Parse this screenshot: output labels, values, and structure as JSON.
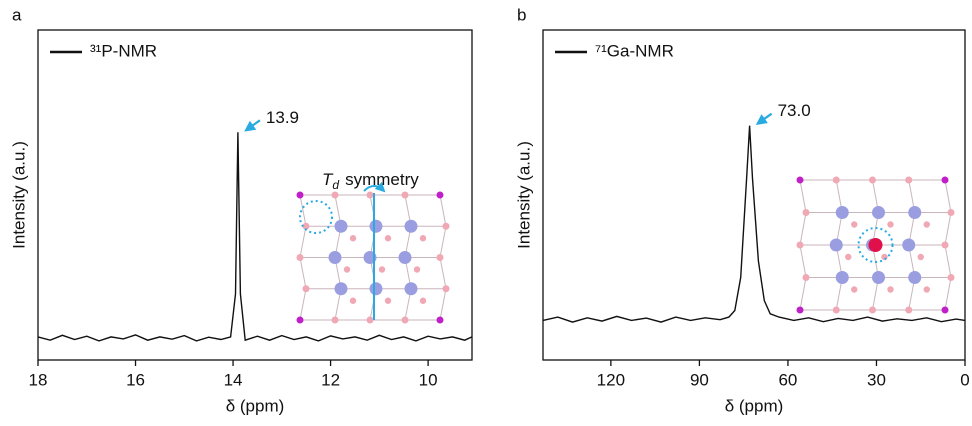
{
  "chart_data": [
    {
      "type": "line",
      "panel": "a",
      "x_label": "δ (ppm)",
      "y_label": "Intensity (a.u.)",
      "xlim": [
        18,
        9.1
      ],
      "xticks": [
        18,
        16,
        14,
        12,
        10
      ],
      "ylim": [
        0,
        1
      ],
      "series": [
        {
          "name": "³¹P-NMR",
          "color": "#111111",
          "x": [
            18,
            17.75,
            17.5,
            17.25,
            17,
            16.75,
            16.5,
            16.25,
            16,
            15.75,
            15.5,
            15.25,
            15,
            14.75,
            14.5,
            14.25,
            14.05,
            13.95,
            13.9,
            13.85,
            13.75,
            13.5,
            13.25,
            13,
            12.75,
            12.5,
            12.25,
            12,
            11.75,
            11.5,
            11.25,
            11,
            10.75,
            10.5,
            10.25,
            10,
            9.75,
            9.5,
            9.25,
            9.1
          ],
          "values": [
            0.07,
            0.06,
            0.075,
            0.062,
            0.072,
            0.058,
            0.07,
            0.064,
            0.076,
            0.06,
            0.07,
            0.063,
            0.074,
            0.058,
            0.069,
            0.062,
            0.07,
            0.2,
            0.69,
            0.2,
            0.06,
            0.072,
            0.06,
            0.074,
            0.062,
            0.07,
            0.058,
            0.073,
            0.064,
            0.07,
            0.06,
            0.075,
            0.062,
            0.07,
            0.058,
            0.072,
            0.064,
            0.07,
            0.06,
            0.07
          ]
        }
      ],
      "annotations": [
        {
          "text": "13.9",
          "x": 13.9
        }
      ],
      "inset_label": {
        "symbol": "T",
        "subscript": "d",
        "text": "symmetry"
      }
    },
    {
      "type": "line",
      "panel": "b",
      "x_label": "δ (ppm)",
      "y_label": "Intensity (a.u.)",
      "xlim": [
        143,
        0
      ],
      "xticks": [
        120,
        90,
        60,
        30,
        0
      ],
      "ylim": [
        0,
        1
      ],
      "series": [
        {
          "name": "⁷¹Ga-NMR",
          "color": "#111111",
          "x": [
            143,
            138,
            133,
            128,
            123,
            118,
            113,
            108,
            103,
            98,
            93,
            88,
            83,
            80,
            78,
            76,
            74,
            73,
            72,
            70,
            68,
            66,
            63,
            58,
            53,
            48,
            43,
            38,
            33,
            28,
            23,
            18,
            13,
            8,
            3,
            0
          ],
          "values": [
            0.12,
            0.13,
            0.115,
            0.128,
            0.118,
            0.132,
            0.12,
            0.127,
            0.115,
            0.13,
            0.12,
            0.128,
            0.122,
            0.13,
            0.15,
            0.25,
            0.55,
            0.71,
            0.55,
            0.3,
            0.18,
            0.14,
            0.13,
            0.12,
            0.128,
            0.116,
            0.126,
            0.12,
            0.13,
            0.118,
            0.125,
            0.12,
            0.128,
            0.116,
            0.124,
            0.12
          ]
        }
      ],
      "annotations": [
        {
          "text": "73.0",
          "x": 73
        }
      ]
    }
  ]
}
